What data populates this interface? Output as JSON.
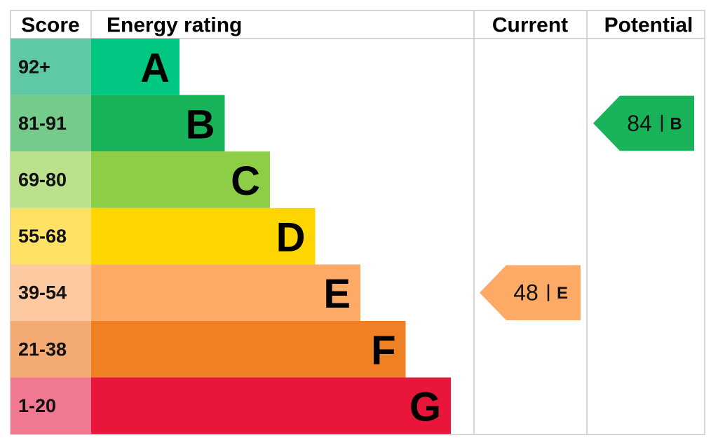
{
  "header": {
    "score": "Score",
    "rating": "Energy rating",
    "current": "Current",
    "potential": "Potential"
  },
  "rows": [
    {
      "score": "92+",
      "letter": "A",
      "color": "#00c781",
      "score_color": "#5fc9a5"
    },
    {
      "score": "81-91",
      "letter": "B",
      "color": "#19b459",
      "score_color": "#75cb8b"
    },
    {
      "score": "69-80",
      "letter": "C",
      "color": "#8dce46",
      "score_color": "#bae28c"
    },
    {
      "score": "55-68",
      "letter": "D",
      "color": "#ffd500",
      "score_color": "#ffe265"
    },
    {
      "score": "39-54",
      "letter": "E",
      "color": "#fcaa65",
      "score_color": "#fdc9a1"
    },
    {
      "score": "21-38",
      "letter": "F",
      "color": "#ef8023",
      "score_color": "#f3ab73"
    },
    {
      "score": "1-20",
      "letter": "G",
      "color": "#e9153b",
      "score_color": "#f07890"
    }
  ],
  "current": {
    "value": 48,
    "letter": "E",
    "row": 4
  },
  "potential": {
    "value": 84,
    "letter": "B",
    "row": 1
  }
}
